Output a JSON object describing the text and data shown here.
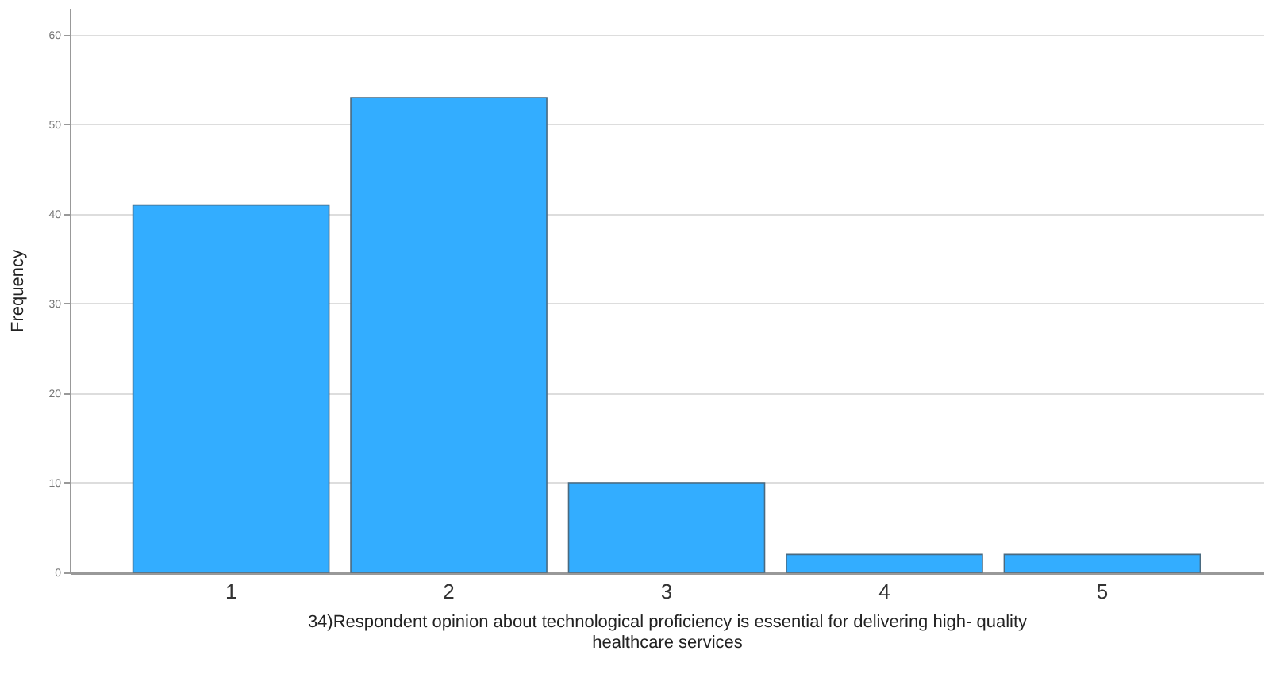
{
  "chart_data": {
    "type": "bar",
    "xlabel": "34)Respondent opinion about technological proficiency is essential for delivering high- quality healthcare services",
    "ylabel": "Frequency",
    "categories": [
      "1",
      "2",
      "3",
      "4",
      "5"
    ],
    "values": [
      41,
      53,
      10,
      2,
      2
    ],
    "color": "#33adff",
    "ylim": [
      0,
      63
    ],
    "yticks": [
      0,
      10,
      20,
      30,
      40,
      50,
      60
    ],
    "grid": "y"
  }
}
